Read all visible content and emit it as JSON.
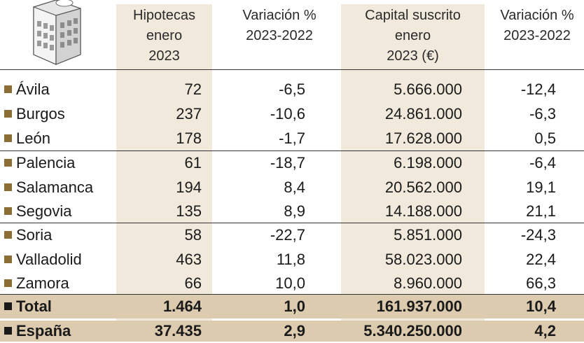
{
  "headers": {
    "hipotecas": [
      "Hipotecas",
      "enero",
      "2023"
    ],
    "variacion1": [
      "Variación %",
      "2023-2022"
    ],
    "capital": [
      "Capital suscrito",
      "enero",
      "2023 (€)"
    ],
    "variacion2": [
      "Variación %",
      "2023-2022"
    ]
  },
  "rows": [
    {
      "name": "Ávila",
      "hipotecas": "72",
      "var1": "-6,5",
      "capital": "5.666.000",
      "var2": "-12,4"
    },
    {
      "name": "Burgos",
      "hipotecas": "237",
      "var1": "-10,6",
      "capital": "24.861.000",
      "var2": "-6,3"
    },
    {
      "name": "León",
      "hipotecas": "178",
      "var1": "-1,7",
      "capital": "17.628.000",
      "var2": "0,5"
    },
    {
      "name": "Palencia",
      "hipotecas": "61",
      "var1": "-18,7",
      "capital": "6.198.000",
      "var2": "-6,4"
    },
    {
      "name": "Salamanca",
      "hipotecas": "194",
      "var1": "8,4",
      "capital": "20.562.000",
      "var2": "19,1"
    },
    {
      "name": "Segovia",
      "hipotecas": "135",
      "var1": "8,9",
      "capital": "14.188.000",
      "var2": "21,1"
    },
    {
      "name": "Soria",
      "hipotecas": "58",
      "var1": "-22,7",
      "capital": "5.851.000",
      "var2": "-24,3"
    },
    {
      "name": "Valladolid",
      "hipotecas": "463",
      "var1": "11,8",
      "capital": "58.023.000",
      "var2": "22,4"
    },
    {
      "name": "Zamora",
      "hipotecas": "66",
      "var1": "10,0",
      "capital": "8.960.000",
      "var2": "66,3"
    }
  ],
  "total": {
    "name": "Total",
    "hipotecas": "1.464",
    "var1": "1,0",
    "capital": "161.937.000",
    "var2": "10,4"
  },
  "espana": {
    "name": "España",
    "hipotecas": "37.435",
    "var1": "2,9",
    "capital": "5.340.250.000",
    "var2": "4,2"
  }
}
